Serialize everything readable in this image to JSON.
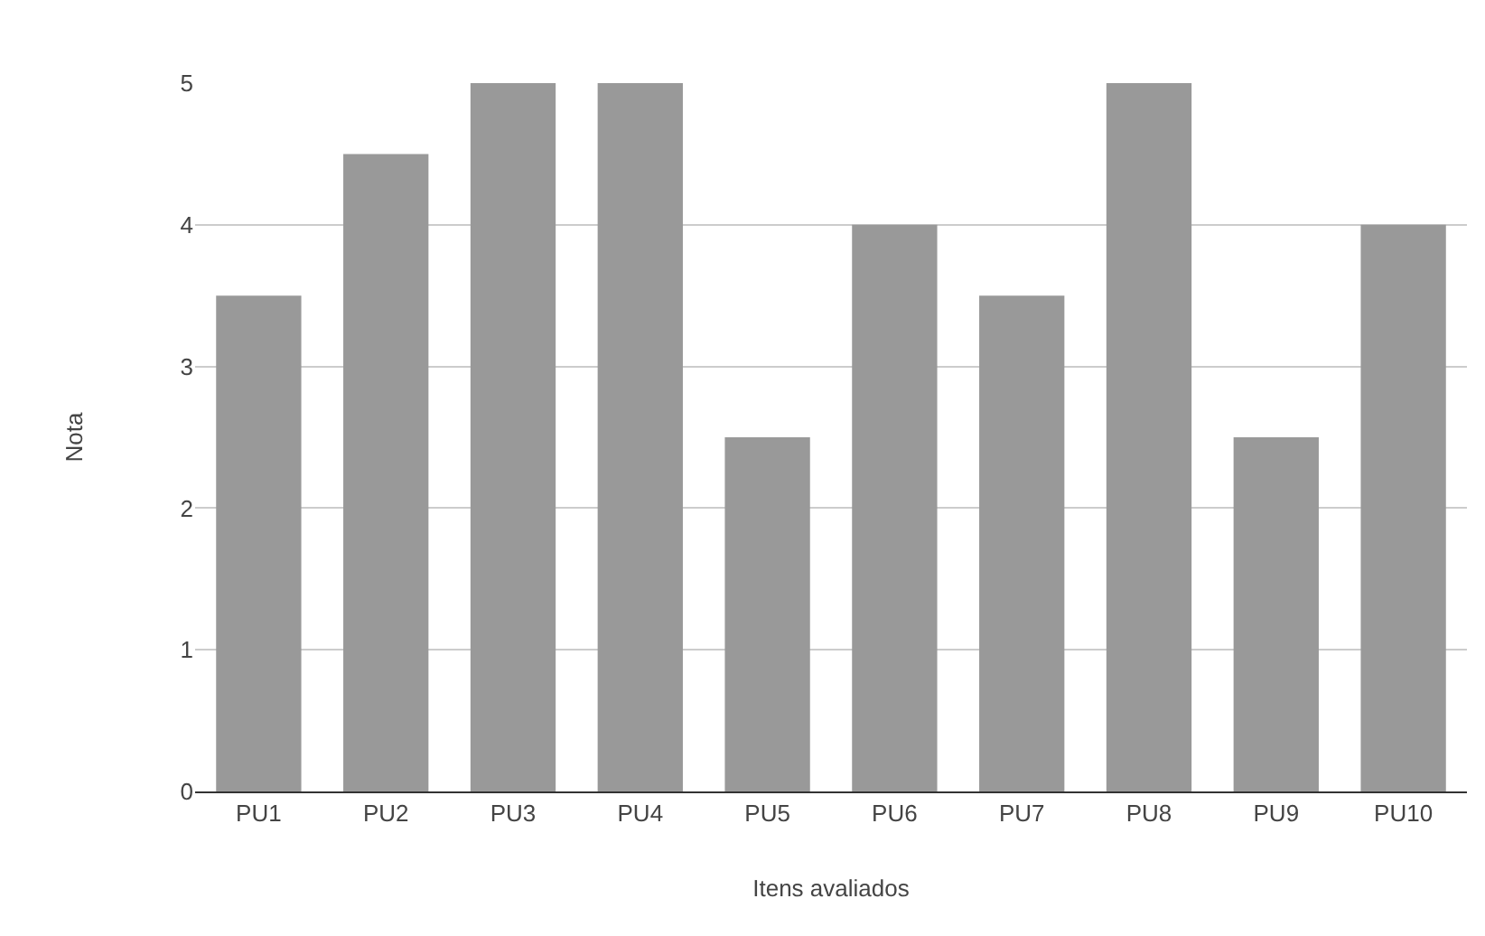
{
  "chart_data": {
    "type": "bar",
    "xlabel": "Itens avaliados",
    "ylabel": "Nota",
    "categories": [
      "PU1",
      "PU2",
      "PU3",
      "PU4",
      "PU5",
      "PU6",
      "PU7",
      "PU8",
      "PU9",
      "PU10"
    ],
    "values": [
      3.5,
      4.5,
      5,
      5,
      2.5,
      4,
      3.5,
      5,
      2.5,
      4
    ],
    "color": "#999999",
    "ylim": [
      0,
      5
    ],
    "yticks": [
      0,
      1,
      2,
      3,
      4,
      5
    ],
    "grid": "y"
  }
}
